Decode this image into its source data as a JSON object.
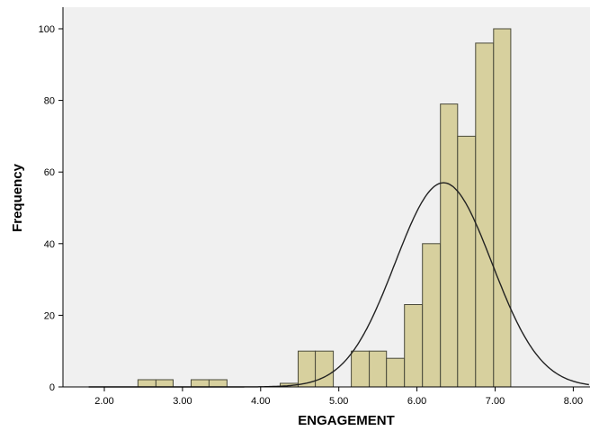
{
  "chart_data": {
    "type": "bar",
    "subtype": "histogram",
    "xlabel": "ENGAGEMENT",
    "ylabel": "Frequency",
    "xlim": [
      1.8,
      8.2
    ],
    "ylim": [
      0,
      105
    ],
    "x_ticks": [
      2.0,
      3.0,
      4.0,
      5.0,
      6.0,
      7.0,
      8.0
    ],
    "x_tick_labels": [
      "2.00",
      "3.00",
      "4.00",
      "5.00",
      "6.00",
      "7.00",
      "8.00"
    ],
    "y_ticks": [
      0,
      20,
      40,
      60,
      80,
      100
    ],
    "y_tick_labels": [
      "0",
      "20",
      "40",
      "60",
      "80",
      "100"
    ],
    "bin_width": 0.227,
    "bins": [
      {
        "start": 2.43,
        "end": 2.66,
        "count": 2
      },
      {
        "start": 2.66,
        "end": 2.88,
        "count": 2
      },
      {
        "start": 3.11,
        "end": 3.34,
        "count": 2
      },
      {
        "start": 3.34,
        "end": 3.57,
        "count": 2
      },
      {
        "start": 4.25,
        "end": 4.48,
        "count": 1
      },
      {
        "start": 4.48,
        "end": 4.7,
        "count": 10
      },
      {
        "start": 4.7,
        "end": 4.93,
        "count": 10
      },
      {
        "start": 5.16,
        "end": 5.39,
        "count": 10
      },
      {
        "start": 5.39,
        "end": 5.61,
        "count": 10
      },
      {
        "start": 5.61,
        "end": 5.84,
        "count": 8
      },
      {
        "start": 5.84,
        "end": 6.07,
        "count": 23
      },
      {
        "start": 6.07,
        "end": 6.3,
        "count": 40
      },
      {
        "start": 6.3,
        "end": 6.52,
        "count": 79
      },
      {
        "start": 6.52,
        "end": 6.75,
        "count": 70
      },
      {
        "start": 6.75,
        "end": 6.98,
        "count": 96
      },
      {
        "start": 6.98,
        "end": 7.2,
        "count": 100
      }
    ],
    "normal_curve": {
      "mean": 6.34,
      "sd": 0.62,
      "peak": 57
    },
    "grid": false,
    "colors": {
      "plot_background": "#f0f0f0",
      "bar_fill": "#d7d09e",
      "bar_edge": "#4a4a3a",
      "curve": "#222222"
    }
  }
}
